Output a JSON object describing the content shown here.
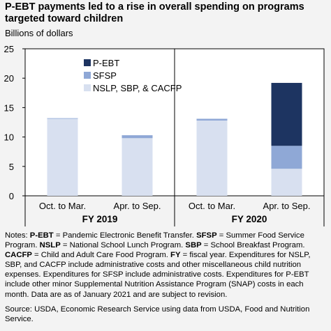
{
  "title": "P-EBT payments led to a rise in overall spending on programs targeted toward children",
  "y_axis_title": "Billions of dollars",
  "colors": {
    "pebt": "#1d3461",
    "sfsp": "#8fa8d6",
    "nslp": "#d8e0f0",
    "background": "#f3f3f3"
  },
  "chart_data": {
    "type": "bar",
    "stacked": true,
    "categories": [
      "Oct. to Mar.",
      "Apr. to Sep.",
      "Oct. to Mar.",
      "Apr. to Sep."
    ],
    "groups": [
      {
        "label": "FY 2019",
        "categories": [
          0,
          1
        ]
      },
      {
        "label": "FY 2020",
        "categories": [
          2,
          3
        ]
      }
    ],
    "series": [
      {
        "name": "NSLP, SBP, & CACFP",
        "values": [
          13.1,
          9.8,
          12.8,
          4.6
        ],
        "color": "#d8e0f0"
      },
      {
        "name": "SFSP",
        "values": [
          0.1,
          0.5,
          0.3,
          3.9
        ],
        "color": "#8fa8d6"
      },
      {
        "name": "P-EBT",
        "values": [
          0,
          0,
          0,
          10.7
        ],
        "color": "#1d3461"
      }
    ],
    "ylim": [
      0,
      25
    ],
    "yticks": [
      "0",
      "5",
      "10",
      "15",
      "20",
      "25"
    ],
    "legend_order": [
      "P-EBT",
      "SFSP",
      "NSLP, SBP, & CACFP"
    ],
    "legend_position": "top-left",
    "grid": false
  },
  "notes_label": "Notes:",
  "notes": [
    {
      "term": "P-EBT",
      "def": " = Pandemic Electronic Benefit Transfer. "
    },
    {
      "term": "SFSP",
      "def": " = Summer Food Service Program. "
    },
    {
      "term": "NSLP",
      "def": " = National School Lunch Program. "
    },
    {
      "term": "SBP",
      "def": " = School Breakfast Program. "
    },
    {
      "term": "CACFP",
      "def": " = Child and Adult Care Food Program. "
    },
    {
      "term": "FY",
      "def": " = fiscal year. Expenditures for NSLP, SBP, and CACFP include administrative costs and other miscellaneous child nutrition expenses. Expenditures for SFSP include administrative costs. Expenditures for P-EBT include other minor Supplemental Nutrition Assistance Program (SNAP) costs in each month. Data are as of January 2021 and are subject to revision."
    }
  ],
  "source": "Source: USDA, Economic Research Service using data from USDA, Food and Nutrition Service."
}
